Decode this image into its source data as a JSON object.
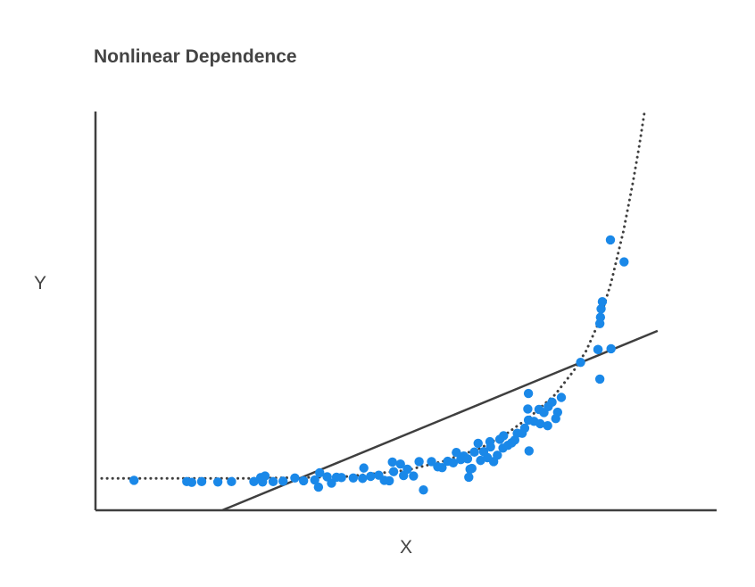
{
  "chart_data": {
    "type": "scatter",
    "title": "Nonlinear Dependence",
    "xlabel": "X",
    "ylabel": "Y",
    "xlim": [
      0,
      100
    ],
    "ylim": [
      0,
      100
    ],
    "grid": false,
    "ticks": false,
    "colors": {
      "points": "#1a88e8",
      "lines": "#3f3f3f",
      "axes": "#3f3f3f",
      "text": "#444444"
    },
    "series": [
      {
        "kind": "points",
        "values": [
          [
            6.2,
            7.5
          ],
          [
            14.7,
            7.2
          ],
          [
            15.5,
            7.0
          ],
          [
            17.1,
            7.2
          ],
          [
            19.7,
            7.1
          ],
          [
            21.9,
            7.2
          ],
          [
            25.5,
            7.2
          ],
          [
            26.6,
            8.2
          ],
          [
            27.3,
            8.6
          ],
          [
            26.9,
            7.1
          ],
          [
            28.6,
            7.2
          ],
          [
            30.2,
            7.3
          ],
          [
            32.1,
            8.1
          ],
          [
            33.5,
            7.4
          ],
          [
            35.3,
            7.6
          ],
          [
            36.1,
            9.4
          ],
          [
            35.9,
            5.8
          ],
          [
            37.3,
            8.4
          ],
          [
            38.0,
            6.8
          ],
          [
            38.8,
            8.3
          ],
          [
            39.6,
            8.2
          ],
          [
            41.5,
            8.1
          ],
          [
            43.0,
            8.0
          ],
          [
            43.2,
            10.6
          ],
          [
            44.3,
            8.5
          ],
          [
            45.6,
            8.8
          ],
          [
            46.5,
            7.5
          ],
          [
            47.3,
            7.4
          ],
          [
            48.0,
            9.7
          ],
          [
            47.8,
            12.1
          ],
          [
            49.1,
            11.6
          ],
          [
            49.6,
            8.7
          ],
          [
            50.2,
            10.3
          ],
          [
            51.2,
            8.6
          ],
          [
            52.1,
            12.2
          ],
          [
            52.8,
            5.1
          ],
          [
            54.1,
            12.2
          ],
          [
            55.1,
            10.9
          ],
          [
            55.8,
            10.7
          ],
          [
            56.7,
            12.3
          ],
          [
            57.6,
            11.9
          ],
          [
            58.1,
            14.5
          ],
          [
            58.8,
            12.7
          ],
          [
            59.3,
            13.6
          ],
          [
            59.9,
            12.9
          ],
          [
            60.3,
            10.3
          ],
          [
            60.1,
            8.3
          ],
          [
            60.6,
            10.5
          ],
          [
            61.0,
            14.6
          ],
          [
            61.6,
            16.8
          ],
          [
            62.0,
            12.5
          ],
          [
            62.5,
            14.7
          ],
          [
            63.1,
            13.2
          ],
          [
            63.6,
            15.9
          ],
          [
            63.5,
            17.2
          ],
          [
            64.1,
            12.2
          ],
          [
            64.7,
            13.8
          ],
          [
            65.1,
            17.8
          ],
          [
            65.6,
            15.6
          ],
          [
            65.7,
            18.7
          ],
          [
            66.4,
            16.3
          ],
          [
            67.0,
            16.9
          ],
          [
            67.5,
            17.6
          ],
          [
            67.9,
            19.3
          ],
          [
            68.7,
            19.3
          ],
          [
            69.1,
            20.6
          ],
          [
            69.8,
            14.9
          ],
          [
            69.7,
            22.6
          ],
          [
            69.6,
            25.4
          ],
          [
            69.7,
            29.3
          ],
          [
            70.6,
            22.3
          ],
          [
            71.6,
            21.7
          ],
          [
            71.4,
            25.3
          ],
          [
            72.2,
            24.5
          ],
          [
            72.8,
            21.2
          ],
          [
            72.9,
            26.0
          ],
          [
            73.5,
            27.1
          ],
          [
            74.1,
            23.0
          ],
          [
            74.4,
            24.6
          ],
          [
            75.0,
            28.3
          ],
          [
            78.1,
            37.1
          ],
          [
            80.9,
            40.3
          ],
          [
            81.2,
            32.9
          ],
          [
            81.2,
            46.8
          ],
          [
            81.3,
            48.4
          ],
          [
            81.4,
            50.5
          ],
          [
            81.6,
            52.3
          ],
          [
            80.9,
            40.3
          ],
          [
            83.0,
            40.5
          ],
          [
            82.9,
            67.8
          ],
          [
            85.1,
            62.3
          ]
        ]
      },
      {
        "kind": "linear-fit",
        "values": [
          [
            20.4,
            0.0
          ],
          [
            90.5,
            45.0
          ]
        ]
      },
      {
        "kind": "exponential-trend",
        "values": [
          [
            1.0,
            8.0
          ],
          [
            25.0,
            8.0
          ],
          [
            40.0,
            8.4
          ],
          [
            50.0,
            10.0
          ],
          [
            56.0,
            12.3
          ],
          [
            62.0,
            15.6
          ],
          [
            66.0,
            19.0
          ],
          [
            70.0,
            23.5
          ],
          [
            74.0,
            29.0
          ],
          [
            77.0,
            35.0
          ],
          [
            79.0,
            40.0
          ],
          [
            81.0,
            47.0
          ],
          [
            83.0,
            57.0
          ],
          [
            85.0,
            70.0
          ],
          [
            86.5,
            82.0
          ],
          [
            87.5,
            91.0
          ],
          [
            88.4,
            100.0
          ]
        ]
      }
    ]
  }
}
